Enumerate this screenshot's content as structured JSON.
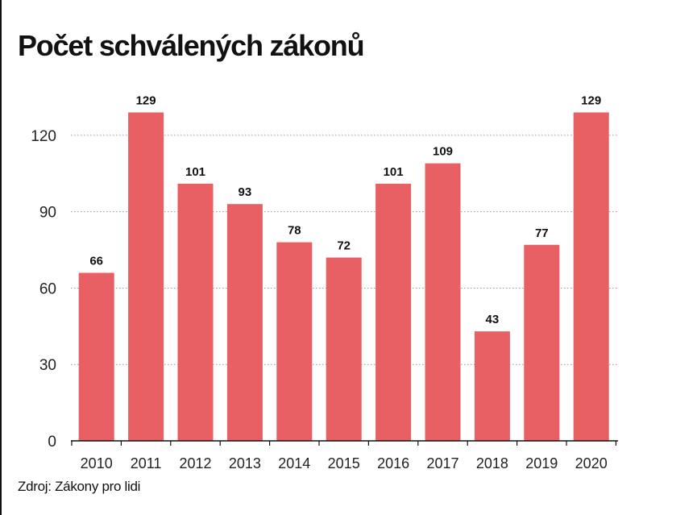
{
  "title": "Počet schválených zákonů",
  "source": "Zdroj: Zákony pro lidi",
  "colors": {
    "bar": "#e85f64",
    "grid": "#999999",
    "axis": "#111111"
  },
  "chart_data": {
    "type": "bar",
    "title": "Počet schválených zákonů",
    "xlabel": "",
    "ylabel": "",
    "categories": [
      "2010",
      "2011",
      "2012",
      "2013",
      "2014",
      "2015",
      "2016",
      "2017",
      "2018",
      "2019",
      "2020"
    ],
    "values": [
      66,
      129,
      101,
      93,
      78,
      72,
      101,
      109,
      43,
      77,
      129
    ],
    "ylim": [
      0,
      132
    ],
    "yticks": [
      0,
      30,
      60,
      90,
      120
    ],
    "grid": true,
    "legend": "none"
  }
}
